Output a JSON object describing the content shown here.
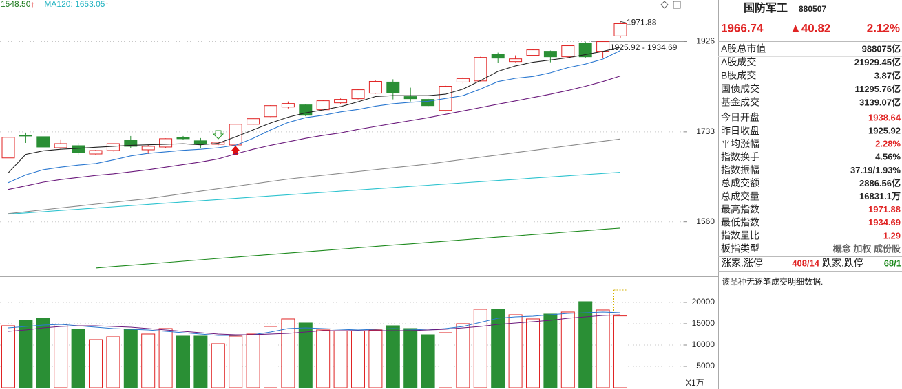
{
  "chart_data": [
    {
      "type": "candlestick",
      "legend": [
        {
          "text": "1548.50",
          "arrow": "↑",
          "color": "#1e7a1e"
        },
        {
          "text": "MA120: 1653.05",
          "arrow": "↑",
          "color": "#20b2c0"
        }
      ],
      "categories": [
        null,
        null,
        null,
        null,
        null,
        null,
        null,
        null,
        null,
        null,
        null,
        null,
        null,
        null,
        null,
        null,
        null,
        null,
        null,
        null,
        null,
        null,
        null,
        null,
        null,
        null,
        null,
        null,
        null,
        null,
        null,
        null,
        null,
        null,
        null,
        null
      ],
      "open": [
        1681,
        1726,
        1723.2,
        1701.1,
        1705.2,
        1688.8,
        1695.6,
        1716.3,
        1697,
        1702.5,
        1721.8,
        1715,
        1708,
        1706.6,
        1748.5,
        1764.1,
        1784.1,
        1788.5,
        1778.4,
        1792.8,
        1801.5,
        1813.2,
        1836.9,
        1805.9,
        1800.1,
        1777,
        1836.9,
        1839.3,
        1898.2,
        1881.4,
        1895.2,
        1904.3,
        1892,
        1922.9,
        1904.3,
        1938.64
      ],
      "high": [
        1722,
        1731.6,
        1723.2,
        1717.7,
        1710.7,
        1697,
        1710,
        1724.6,
        1706.6,
        1720,
        1724.6,
        1720.5,
        1713,
        1749,
        1761,
        1788,
        1795.7,
        1790,
        1798,
        1802,
        1822,
        1840,
        1842.9,
        1824.9,
        1802,
        1829,
        1847.4,
        1892,
        1901.3,
        1895.2,
        1909,
        1905.9,
        1918,
        1926,
        1926.5,
        1971.88
      ],
      "low": [
        1681,
        1710.7,
        1702.5,
        1698.4,
        1687.4,
        1687,
        1694,
        1699.8,
        1688.8,
        1701,
        1716.3,
        1699.8,
        1706,
        1705,
        1747,
        1763,
        1781.2,
        1765,
        1777,
        1791,
        1800,
        1812,
        1800.1,
        1795.7,
        1785,
        1775,
        1833.9,
        1838,
        1878.3,
        1879.9,
        1894,
        1879.9,
        1891,
        1889,
        1889,
        1934.69
      ],
      "close": [
        1722,
        1724.6,
        1702.5,
        1709.3,
        1691.5,
        1695.6,
        1709.3,
        1703.9,
        1703.9,
        1719.1,
        1719.1,
        1709.3,
        1712.1,
        1748.5,
        1759.9,
        1787,
        1791.4,
        1767,
        1797.2,
        1800.1,
        1820.5,
        1838.3,
        1814.6,
        1801.5,
        1787,
        1827.9,
        1844.4,
        1890.5,
        1889,
        1887.4,
        1907.4,
        1892,
        1916.7,
        1892,
        1925.92,
        1966.74
      ],
      "up_color": "#e02424",
      "down_color": "#2a8f35",
      "lines": [
        {
          "color": "#222222",
          "values": [
            1652,
            1688,
            1695,
            1698,
            1700,
            1702,
            1704,
            1706,
            1707,
            1708,
            1709,
            1707,
            1710,
            1723,
            1737,
            1751,
            1763,
            1772,
            1778,
            1785,
            1795,
            1806,
            1808,
            1808,
            1808,
            1811,
            1822,
            1840,
            1860,
            1872,
            1880,
            1885,
            1890,
            1897,
            1904,
            1913
          ]
        },
        {
          "color": "#2b78d0",
          "values": [
            1633,
            1648,
            1658,
            1663,
            1667,
            1670,
            1677,
            1685,
            1690,
            1693,
            1696,
            1698,
            1701,
            1706,
            1720,
            1737,
            1752,
            1762,
            1767,
            1774,
            1779,
            1786,
            1791,
            1794,
            1796,
            1802,
            1808,
            1822,
            1838,
            1845,
            1849,
            1857,
            1868,
            1876,
            1887,
            1906
          ]
        },
        {
          "color": "#6b1a7c",
          "values": [
            1620,
            1627,
            1634,
            1639,
            1643,
            1647,
            1650,
            1654,
            1658,
            1663,
            1668,
            1673,
            1679,
            1689,
            1698,
            1706,
            1713,
            1720,
            1726,
            1731,
            1738,
            1744,
            1750,
            1756,
            1762,
            1769,
            1776,
            1783,
            1790,
            1797,
            1804,
            1811,
            1819,
            1828,
            1838,
            1850
          ]
        },
        {
          "color": "#8a8a8a",
          "values": [
            1575,
            1578.5,
            1582,
            1585.5,
            1589,
            1592.5,
            1596,
            1599.5,
            1603,
            1607.6,
            1612.2,
            1616.9,
            1621.5,
            1626.1,
            1630.8,
            1635.4,
            1640,
            1643.6,
            1647.3,
            1650.9,
            1654.5,
            1658.1,
            1661.8,
            1665.4,
            1669,
            1673.5,
            1678,
            1682.4,
            1686.9,
            1691.4,
            1695.9,
            1700.4,
            1704.9,
            1709.5,
            1714,
            1718.6
          ]
        },
        {
          "color": "#2ec3cf",
          "values": [
            1574,
            1576.3,
            1578.5,
            1580.8,
            1583,
            1585.3,
            1587.5,
            1589.8,
            1592.1,
            1594.3,
            1596.6,
            1598.8,
            1601.1,
            1603.4,
            1605.6,
            1607.9,
            1610.1,
            1612.4,
            1614.6,
            1616.9,
            1619.2,
            1621.4,
            1623.7,
            1625.9,
            1628.2,
            1630.5,
            1632.7,
            1635,
            1637.2,
            1639.5,
            1641.8,
            1644,
            1646.3,
            1648.5,
            1650.8,
            1653.05
          ]
        },
        {
          "color": "#1e8a1e",
          "values": [
            null,
            null,
            null,
            null,
            null,
            1478,
            1480.4,
            1482.7,
            1485.1,
            1487.4,
            1489.8,
            1492.1,
            1494.5,
            1496.8,
            1499.2,
            1501.5,
            1503.9,
            1506.2,
            1508.6,
            1510.9,
            1513.3,
            1515.6,
            1518,
            1520.3,
            1522.7,
            1525,
            1527.4,
            1529.7,
            1532.1,
            1534.4,
            1536.8,
            1539.1,
            1541.5,
            1543.8,
            1546.2,
            1548.5
          ]
        }
      ],
      "annotations": [
        {
          "text": "1971.88"
        },
        {
          "text": "1925.92 - 1934.69"
        }
      ],
      "ref_line": 1925.92,
      "ylim": [
        1466,
        2022
      ],
      "yticks": [
        1560,
        1733,
        1926
      ],
      "log": true,
      "grid": true
    },
    {
      "type": "bar",
      "values": [
        14516,
        15806,
        16290,
        14839,
        13710,
        11290,
        11935,
        13710,
        12580,
        13871,
        12097,
        12097,
        10323,
        12097,
        12580,
        14355,
        16129,
        15161,
        13548,
        13387,
        13387,
        13548,
        14516,
        13871,
        12419,
        12903,
        15000,
        18387,
        18387,
        17097,
        16129,
        17258,
        17742,
        20161,
        18226,
        16831.1
      ],
      "projected": 22900,
      "lines": [
        {
          "color": "#2b78d0",
          "values": [
            14032,
            14355,
            14677,
            14839,
            14516,
            14194,
            13871,
            13710,
            13548,
            13226,
            12903,
            12581,
            12258,
            12258,
            12419,
            13065,
            13871,
            14032,
            13871,
            13710,
            13548,
            13710,
            13871,
            13710,
            13548,
            13871,
            14355,
            15323,
            16290,
            16613,
            16774,
            17097,
            17419,
            17581,
            17742,
            17581
          ]
        },
        {
          "color": "#6b1a7c",
          "values": [
            13226,
            13548,
            14032,
            14355,
            14516,
            14516,
            14355,
            14194,
            13871,
            13548,
            13226,
            12903,
            12581,
            12419,
            12419,
            12581,
            12742,
            13065,
            13387,
            13387,
            13387,
            13387,
            13387,
            13387,
            13548,
            13710,
            14032,
            14355,
            14839,
            15161,
            15484,
            15806,
            16290,
            16613,
            16935,
            17097
          ]
        }
      ],
      "unit_label": "X1万",
      "ylim": [
        0,
        25800
      ],
      "yticks": [
        5000,
        10000,
        15000,
        20000
      ],
      "grid": true
    }
  ],
  "info": {
    "name": "国防军工",
    "code": "880507",
    "price": "1966.74",
    "change": "▲40.82",
    "change_pct": "2.12%",
    "rows": [
      {
        "label": "A股总市值",
        "value": "988075亿"
      },
      {
        "label": "A股成交",
        "value": "21929.45亿"
      },
      {
        "label": "B股成交",
        "value": "3.87亿"
      },
      {
        "label": "国债成交",
        "value": "11295.76亿"
      },
      {
        "label": "基金成交",
        "value": "3139.07亿"
      },
      {
        "label": "今日开盘",
        "value": "1938.64",
        "color": "#e02424"
      },
      {
        "label": "昨日收盘",
        "value": "1925.92"
      },
      {
        "label": "平均涨幅",
        "value": "2.28%",
        "color": "#e02424"
      },
      {
        "label": "指数换手",
        "value": "4.56%"
      },
      {
        "label": "指数振幅",
        "value": "37.19/1.93%"
      },
      {
        "label": "总成交额",
        "value": "2886.56亿"
      },
      {
        "label": "总成交量",
        "value": "16831.1万"
      },
      {
        "label": "最高指数",
        "value": "1971.88",
        "color": "#e02424"
      },
      {
        "label": "最低指数",
        "value": "1934.69",
        "color": "#e02424"
      },
      {
        "label": "指数量比",
        "value": "1.29",
        "color": "#e02424"
      },
      {
        "label": "板指类型",
        "value": "概念 加权 成份股",
        "color": "#666666"
      }
    ],
    "breadth": {
      "up_label": "涨家.涨停",
      "up_value": "408/14",
      "down_label": "跌家.跌停",
      "down_value": "68/1"
    },
    "note": "该品种无逐笔成交明细数据."
  }
}
